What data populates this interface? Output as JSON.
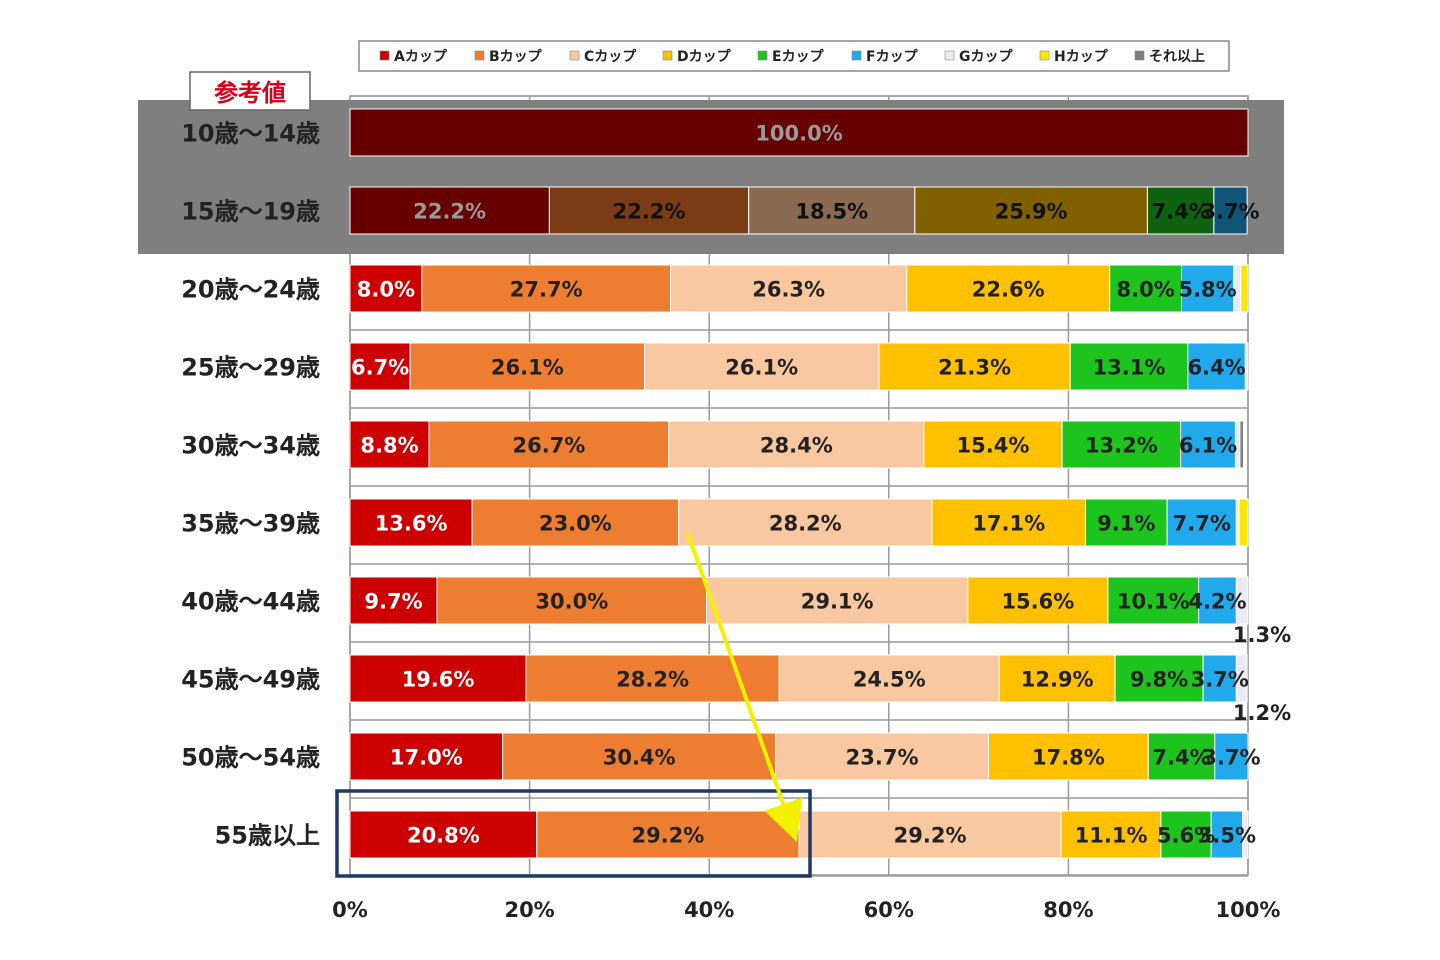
{
  "chart_data": {
    "type": "bar",
    "orientation": "horizontal",
    "stacked": true,
    "xlim": [
      0,
      100
    ],
    "x_ticks": [
      "0%",
      "20%",
      "40%",
      "60%",
      "80%",
      "100%"
    ],
    "reference_label": "参考値",
    "categories": [
      "10歳～14歳",
      "15歳～19歳",
      "20歳～24歳",
      "25歳～29歳",
      "30歳～34歳",
      "35歳～39歳",
      "40歳～44歳",
      "45歳～49歳",
      "50歳～54歳",
      "55歳以上"
    ],
    "reference_categories": [
      0,
      1
    ],
    "highlight_category": 9,
    "series": [
      {
        "name": "Aカップ",
        "color": "#cc0000",
        "ref_color": "#660000",
        "values": [
          100.0,
          22.2,
          8.0,
          6.7,
          8.8,
          13.6,
          9.7,
          19.6,
          17.0,
          20.8
        ]
      },
      {
        "name": "Bカップ",
        "color": "#ed7d31",
        "ref_color": "#7a3c14",
        "values": [
          0,
          22.2,
          27.7,
          26.1,
          26.7,
          23.0,
          30.0,
          28.2,
          30.4,
          29.2
        ]
      },
      {
        "name": "Cカップ",
        "color": "#fac8a0",
        "ref_color": "#8a6b52",
        "values": [
          0,
          18.5,
          26.3,
          26.1,
          28.4,
          28.2,
          29.1,
          24.5,
          23.7,
          29.2
        ]
      },
      {
        "name": "Dカップ",
        "color": "#ffc000",
        "ref_color": "#806000",
        "values": [
          0,
          25.9,
          22.6,
          21.3,
          15.4,
          17.1,
          15.6,
          12.9,
          17.8,
          11.1
        ]
      },
      {
        "name": "Eカップ",
        "color": "#1ec41e",
        "ref_color": "#0f620f",
        "values": [
          0,
          7.4,
          8.0,
          13.1,
          13.2,
          9.1,
          10.1,
          9.8,
          7.4,
          5.6
        ]
      },
      {
        "name": "Fカップ",
        "color": "#21a9ec",
        "ref_color": "#115576",
        "values": [
          0,
          3.7,
          5.8,
          6.4,
          6.1,
          7.7,
          4.2,
          3.7,
          3.7,
          3.5
        ]
      },
      {
        "name": "Gカップ",
        "color": "#eaeaf4",
        "ref_color": "#75757a",
        "values": [
          0,
          0,
          0.8,
          0.3,
          0.5,
          0.3,
          1.3,
          1.2,
          0,
          0.6
        ]
      },
      {
        "name": "Hカップ",
        "color": "#ffe600",
        "ref_color": "#807300",
        "values": [
          0,
          0,
          0.8,
          0,
          0,
          1.0,
          0,
          0,
          0,
          0
        ]
      },
      {
        "name": "それ以上",
        "color": "#7f7f7f",
        "ref_color": "#404040",
        "values": [
          0,
          0,
          0,
          0,
          0.4,
          0,
          0,
          0,
          0,
          0
        ]
      }
    ],
    "data_labels": [
      [
        "100.0%",
        "",
        "",
        "",
        "",
        "",
        "",
        "",
        ""
      ],
      [
        "22.2%",
        "22.2%",
        "18.5%",
        "25.9%",
        "7.4%",
        "3.7%",
        "",
        "",
        ""
      ],
      [
        "8.0%",
        "27.7%",
        "26.3%",
        "22.6%",
        "8.0%",
        "5.8%",
        "",
        "",
        ""
      ],
      [
        "6.7%",
        "26.1%",
        "26.1%",
        "21.3%",
        "13.1%",
        "6.4%",
        "",
        "",
        ""
      ],
      [
        "8.8%",
        "26.7%",
        "28.4%",
        "15.4%",
        "13.2%",
        "6.1%",
        "",
        "",
        ""
      ],
      [
        "13.6%",
        "23.0%",
        "28.2%",
        "17.1%",
        "9.1%",
        "7.7%",
        "",
        "",
        ""
      ],
      [
        "9.7%",
        "30.0%",
        "29.1%",
        "15.6%",
        "10.1%",
        "4.2%",
        "1.3%",
        "",
        ""
      ],
      [
        "19.6%",
        "28.2%",
        "24.5%",
        "12.9%",
        "9.8%",
        "3.7%",
        "1.2%",
        "",
        ""
      ],
      [
        "17.0%",
        "30.4%",
        "23.7%",
        "17.8%",
        "7.4%",
        "3.7%",
        "",
        "",
        ""
      ],
      [
        "20.8%",
        "29.2%",
        "29.2%",
        "11.1%",
        "5.6%",
        "3.5%",
        "",
        "",
        ""
      ]
    ]
  }
}
